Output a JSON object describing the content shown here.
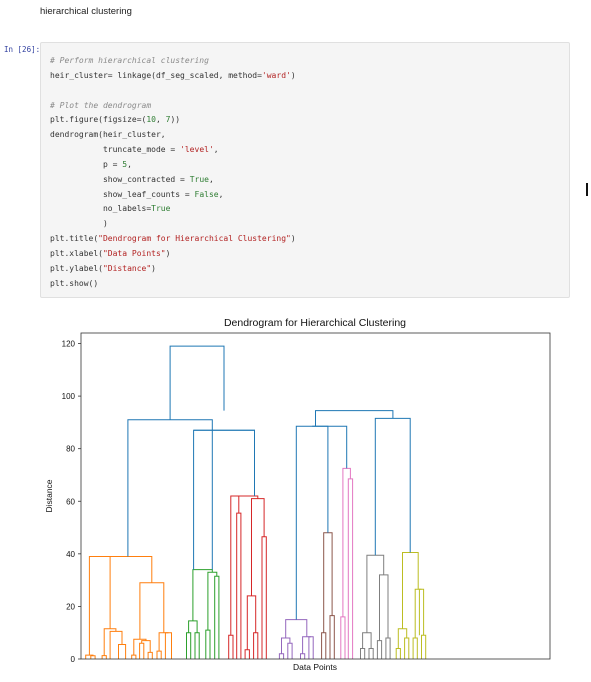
{
  "markdown": {
    "text": "hierarchical clustering"
  },
  "code_cell": {
    "prompt": "In [26]:",
    "lines": [
      {
        "tokens": [
          {
            "t": "# Perform hierarchical clustering",
            "c": "cmt"
          }
        ]
      },
      {
        "tokens": [
          {
            "t": "heir_cluster= linkage(df_seg_scaled, method="
          },
          {
            "t": "'ward'",
            "c": "str"
          },
          {
            "t": ")"
          }
        ]
      },
      {
        "tokens": [
          {
            "t": ""
          }
        ]
      },
      {
        "tokens": [
          {
            "t": "# Plot the dendrogram",
            "c": "cmt"
          }
        ]
      },
      {
        "tokens": [
          {
            "t": "plt.figure(figsize=("
          },
          {
            "t": "10",
            "c": "num"
          },
          {
            "t": ", "
          },
          {
            "t": "7",
            "c": "num"
          },
          {
            "t": "))"
          }
        ]
      },
      {
        "tokens": [
          {
            "t": "dendrogram(heir_cluster,"
          }
        ]
      },
      {
        "tokens": [
          {
            "t": "           truncate_mode = "
          },
          {
            "t": "'level'",
            "c": "str"
          },
          {
            "t": ","
          }
        ]
      },
      {
        "tokens": [
          {
            "t": "           p = "
          },
          {
            "t": "5",
            "c": "num"
          },
          {
            "t": ","
          }
        ]
      },
      {
        "tokens": [
          {
            "t": "           show_contracted = "
          },
          {
            "t": "True",
            "c": "kw"
          },
          {
            "t": ","
          }
        ]
      },
      {
        "tokens": [
          {
            "t": "           show_leaf_counts = "
          },
          {
            "t": "False",
            "c": "kw"
          },
          {
            "t": ","
          }
        ]
      },
      {
        "tokens": [
          {
            "t": "           no_labels="
          },
          {
            "t": "True",
            "c": "kw"
          }
        ]
      },
      {
        "tokens": [
          {
            "t": "           )"
          }
        ]
      },
      {
        "tokens": [
          {
            "t": "plt.title("
          },
          {
            "t": "\"Dendrogram for Hierarchical Clustering\"",
            "c": "str"
          },
          {
            "t": ")"
          }
        ]
      },
      {
        "tokens": [
          {
            "t": "plt.xlabel("
          },
          {
            "t": "\"Data Points\"",
            "c": "str"
          },
          {
            "t": ")"
          }
        ]
      },
      {
        "tokens": [
          {
            "t": "plt.ylabel("
          },
          {
            "t": "\"Distance\"",
            "c": "str"
          },
          {
            "t": ")"
          }
        ]
      },
      {
        "tokens": [
          {
            "t": "plt.show()"
          }
        ]
      }
    ]
  },
  "chart_data": {
    "type": "dendrogram",
    "title": "Dendrogram for Hierarchical Clustering",
    "xlabel": "Data Points",
    "ylabel": "Distance",
    "ylim": [
      0,
      124
    ],
    "xlim": [
      0,
      100
    ],
    "yticks": [
      0,
      20,
      40,
      60,
      80,
      100,
      120
    ],
    "grid": false,
    "colors": {
      "top": "#1f77b4",
      "orange": "#ff7f0e",
      "green": "#2ca02c",
      "red": "#d62728",
      "purple": "#9467bd",
      "brown": "#8c564b",
      "pink": "#e377c2",
      "gray": "#7f7f7f",
      "olive": "#bcbd22"
    },
    "links": [
      {
        "x": [
          2.1,
          2.1,
          3.0,
          3.0
        ],
        "y": [
          0,
          1.2,
          1.2,
          0
        ],
        "color": "orange"
      },
      {
        "x": [
          1.0,
          1.0,
          2.55,
          2.55
        ],
        "y": [
          0,
          1.5,
          1.5,
          1.2
        ],
        "color": "orange"
      },
      {
        "x": [
          4.5,
          4.5,
          5.4,
          5.4
        ],
        "y": [
          0,
          1.3,
          1.3,
          0
        ],
        "color": "orange"
      },
      {
        "x": [
          8.0,
          8.0,
          9.5,
          9.5
        ],
        "y": [
          0,
          5.5,
          5.5,
          0
        ],
        "color": "orange"
      },
      {
        "x": [
          6.2,
          6.2,
          8.75,
          8.75
        ],
        "y": [
          0,
          10.5,
          10.5,
          5.5
        ],
        "color": "orange"
      },
      {
        "x": [
          4.95,
          4.95,
          7.45,
          7.45
        ],
        "y": [
          1.3,
          11.5,
          11.5,
          10.5
        ],
        "color": "orange"
      },
      {
        "x": [
          1.8,
          1.8,
          6.2,
          6.2
        ],
        "y": [
          1.5,
          39.0,
          39.0,
          11.5
        ],
        "color": "orange"
      },
      {
        "x": [
          10.8,
          10.8,
          11.7,
          11.7
        ],
        "y": [
          0,
          1.5,
          1.5,
          0
        ],
        "color": "orange"
      },
      {
        "x": [
          12.5,
          12.5,
          13.4,
          13.4
        ],
        "y": [
          0,
          6.0,
          6.0,
          0
        ],
        "color": "orange"
      },
      {
        "x": [
          14.3,
          14.3,
          15.2,
          15.2
        ],
        "y": [
          0,
          2.5,
          2.5,
          0
        ],
        "color": "orange"
      },
      {
        "x": [
          12.95,
          12.95,
          14.75,
          14.75
        ],
        "y": [
          6.0,
          7.0,
          7.0,
          2.5
        ],
        "color": "orange"
      },
      {
        "x": [
          11.25,
          11.25,
          13.85,
          13.85
        ],
        "y": [
          1.5,
          7.5,
          7.5,
          7.0
        ],
        "color": "orange"
      },
      {
        "x": [
          16.2,
          16.2,
          17.1,
          17.1
        ],
        "y": [
          0,
          3.0,
          3.0,
          0
        ],
        "color": "orange"
      },
      {
        "x": [
          18.0,
          18.0,
          19.3,
          19.3
        ],
        "y": [
          0,
          10.0,
          10.0,
          0
        ],
        "color": "orange"
      },
      {
        "x": [
          16.65,
          16.65,
          18.65,
          18.65
        ],
        "y": [
          3.0,
          10.0,
          10.0,
          10.0
        ],
        "color": "orange"
      },
      {
        "x": [
          12.55,
          12.55,
          17.65,
          17.65
        ],
        "y": [
          7.5,
          29.0,
          29.0,
          10.0
        ],
        "color": "orange"
      },
      {
        "x": [
          4.0,
          4.0,
          15.1,
          15.1
        ],
        "y": [
          39.0,
          39.0,
          39.0,
          29.0
        ],
        "color": "orange"
      },
      {
        "x": [
          22.5,
          22.5,
          23.4,
          23.4
        ],
        "y": [
          0,
          10.0,
          10.0,
          0
        ],
        "color": "green"
      },
      {
        "x": [
          24.3,
          24.3,
          25.2,
          25.2
        ],
        "y": [
          0,
          10.0,
          10.0,
          0
        ],
        "color": "green"
      },
      {
        "x": [
          22.95,
          22.95,
          24.75,
          24.75
        ],
        "y": [
          10.0,
          14.5,
          14.5,
          10.0
        ],
        "color": "green"
      },
      {
        "x": [
          26.6,
          26.6,
          27.5,
          27.5
        ],
        "y": [
          0,
          11.0,
          11.0,
          0
        ],
        "color": "green"
      },
      {
        "x": [
          28.5,
          28.5,
          29.4,
          29.4
        ],
        "y": [
          0,
          31.5,
          31.5,
          0
        ],
        "color": "green"
      },
      {
        "x": [
          27.05,
          27.05,
          28.95,
          28.95
        ],
        "y": [
          11.0,
          33.0,
          33.0,
          31.5
        ],
        "color": "green"
      },
      {
        "x": [
          23.85,
          23.85,
          28.0,
          28.0
        ],
        "y": [
          14.5,
          34.0,
          34.0,
          33.0
        ],
        "color": "green"
      },
      {
        "x": [
          31.5,
          31.5,
          32.4,
          32.4
        ],
        "y": [
          0,
          9.0,
          9.0,
          0
        ],
        "color": "red"
      },
      {
        "x": [
          33.2,
          33.2,
          34.1,
          34.1
        ],
        "y": [
          0,
          55.5,
          55.5,
          0
        ],
        "color": "red"
      },
      {
        "x": [
          35.0,
          35.0,
          35.9,
          35.9
        ],
        "y": [
          0,
          3.5,
          3.5,
          0
        ],
        "color": "red"
      },
      {
        "x": [
          36.8,
          36.8,
          37.7,
          37.7
        ],
        "y": [
          0,
          10.0,
          10.0,
          0
        ],
        "color": "red"
      },
      {
        "x": [
          35.45,
          35.45,
          37.25,
          37.25
        ],
        "y": [
          3.5,
          24.0,
          24.0,
          10.0
        ],
        "color": "red"
      },
      {
        "x": [
          38.6,
          38.6,
          39.5,
          39.5
        ],
        "y": [
          0,
          46.5,
          46.5,
          0
        ],
        "color": "red"
      },
      {
        "x": [
          36.35,
          36.35,
          39.05,
          39.05
        ],
        "y": [
          24.0,
          61.0,
          61.0,
          46.5
        ],
        "color": "red"
      },
      {
        "x": [
          33.65,
          33.65,
          37.7,
          37.7
        ],
        "y": [
          55.5,
          62.0,
          62.0,
          61.0
        ],
        "color": "red"
      },
      {
        "x": [
          31.95,
          31.95,
          35.7,
          35.7
        ],
        "y": [
          9.0,
          62.0,
          62.0,
          62.0
        ],
        "color": "red"
      },
      {
        "x": [
          42.3,
          42.3,
          43.2,
          43.2
        ],
        "y": [
          0,
          2.0,
          2.0,
          0
        ],
        "color": "purple"
      },
      {
        "x": [
          44.1,
          44.1,
          45.0,
          45.0
        ],
        "y": [
          0,
          6.0,
          6.0,
          0
        ],
        "color": "purple"
      },
      {
        "x": [
          42.75,
          42.75,
          44.55,
          44.55
        ],
        "y": [
          2.0,
          8.0,
          8.0,
          6.0
        ],
        "color": "purple"
      },
      {
        "x": [
          46.8,
          46.8,
          47.7,
          47.7
        ],
        "y": [
          0,
          2.0,
          2.0,
          0
        ],
        "color": "purple"
      },
      {
        "x": [
          48.6,
          48.6,
          49.5,
          49.5
        ],
        "y": [
          0,
          8.5,
          8.5,
          0
        ],
        "color": "purple"
      },
      {
        "x": [
          47.25,
          47.25,
          49.05,
          49.05
        ],
        "y": [
          2.0,
          8.5,
          8.5,
          8.5
        ],
        "color": "purple"
      },
      {
        "x": [
          43.65,
          43.65,
          48.15,
          48.15
        ],
        "y": [
          8.0,
          15.0,
          15.0,
          8.5
        ],
        "color": "purple"
      },
      {
        "x": [
          51.3,
          51.3,
          52.2,
          52.2
        ],
        "y": [
          0,
          10.0,
          10.0,
          0
        ],
        "color": "brown"
      },
      {
        "x": [
          53.1,
          53.1,
          54.0,
          54.0
        ],
        "y": [
          0,
          16.5,
          16.5,
          0
        ],
        "color": "brown"
      },
      {
        "x": [
          51.75,
          51.75,
          53.55,
          53.55
        ],
        "y": [
          10.0,
          48.0,
          48.0,
          16.5
        ],
        "color": "brown"
      },
      {
        "x": [
          55.4,
          55.4,
          56.3,
          56.3
        ],
        "y": [
          0,
          16.0,
          16.0,
          0
        ],
        "color": "pink"
      },
      {
        "x": [
          57.0,
          57.0,
          57.9,
          57.9
        ],
        "y": [
          0,
          68.5,
          68.5,
          0
        ],
        "color": "pink"
      },
      {
        "x": [
          55.85,
          55.85,
          57.45,
          57.45
        ],
        "y": [
          16.0,
          72.5,
          72.5,
          68.5
        ],
        "color": "pink"
      },
      {
        "x": [
          59.6,
          59.6,
          60.5,
          60.5
        ],
        "y": [
          0,
          4.0,
          4.0,
          0
        ],
        "color": "gray"
      },
      {
        "x": [
          61.4,
          61.4,
          62.3,
          62.3
        ],
        "y": [
          0,
          4.0,
          4.0,
          0
        ],
        "color": "gray"
      },
      {
        "x": [
          60.05,
          60.05,
          61.85,
          61.85
        ],
        "y": [
          4.0,
          10.0,
          10.0,
          4.0
        ],
        "color": "gray"
      },
      {
        "x": [
          63.2,
          63.2,
          64.1,
          64.1
        ],
        "y": [
          0,
          7.0,
          7.0,
          0
        ],
        "color": "gray"
      },
      {
        "x": [
          65.0,
          65.0,
          65.9,
          65.9
        ],
        "y": [
          0,
          8.0,
          8.0,
          0
        ],
        "color": "gray"
      },
      {
        "x": [
          63.65,
          63.65,
          65.45,
          65.45
        ],
        "y": [
          7.0,
          32.0,
          32.0,
          8.0
        ],
        "color": "gray"
      },
      {
        "x": [
          60.95,
          60.95,
          64.55,
          64.55
        ],
        "y": [
          10.0,
          39.5,
          39.5,
          32.0
        ],
        "color": "gray"
      },
      {
        "x": [
          67.2,
          67.2,
          68.1,
          68.1
        ],
        "y": [
          0,
          4.0,
          4.0,
          0
        ],
        "color": "olive"
      },
      {
        "x": [
          69.0,
          69.0,
          69.9,
          69.9
        ],
        "y": [
          0,
          8.0,
          8.0,
          0
        ],
        "color": "olive"
      },
      {
        "x": [
          67.65,
          67.65,
          69.45,
          69.45
        ],
        "y": [
          4.0,
          11.5,
          11.5,
          8.0
        ],
        "color": "olive"
      },
      {
        "x": [
          70.8,
          70.8,
          71.7,
          71.7
        ],
        "y": [
          0,
          8.0,
          8.0,
          0
        ],
        "color": "olive"
      },
      {
        "x": [
          72.6,
          72.6,
          73.5,
          73.5
        ],
        "y": [
          0,
          9.0,
          9.0,
          0
        ],
        "color": "olive"
      },
      {
        "x": [
          72.15,
          72.15,
          73.05,
          73.05
        ],
        "y": [
          9.0,
          26.5,
          26.5,
          9.0
        ],
        "color": "olive"
      },
      {
        "x": [
          71.25,
          71.25,
          72.6,
          72.6
        ],
        "y": [
          8.0,
          26.5,
          26.5,
          26.5
        ],
        "color": "olive"
      },
      {
        "x": [
          68.55,
          68.55,
          71.9,
          71.9
        ],
        "y": [
          11.5,
          40.5,
          40.5,
          26.5
        ],
        "color": "olive"
      },
      {
        "x": [
          10.0,
          10.0,
          28.0,
          28.0
        ],
        "y": [
          39.0,
          91.0,
          91.0,
          34.0
        ],
        "color": "top"
      },
      {
        "x": [
          24.0,
          24.0,
          37.0,
          37.0
        ],
        "y": [
          87.0,
          87.0,
          87.0,
          62.0
        ],
        "color": "top"
      },
      {
        "x": [
          37.0,
          37.0,
          37.0,
          37.0
        ],
        "y": [
          62.0,
          87.0,
          87.0,
          62.0
        ],
        "color": "top"
      },
      {
        "x": [
          24.0,
          24.0,
          37.0,
          37.0
        ],
        "y": [
          34.0,
          87.0,
          87.0,
          62.0
        ],
        "color": "top"
      },
      {
        "x": [
          19.0,
          19.0,
          30.5,
          30.5
        ],
        "y": [
          91.0,
          119.0,
          119.0,
          94.5
        ],
        "color": "top"
      },
      {
        "x": [
          45.9,
          45.9,
          52.65,
          52.65
        ],
        "y": [
          15.0,
          88.5,
          88.5,
          48.0
        ],
        "color": "top"
      },
      {
        "x": [
          49.3,
          49.3,
          56.65,
          56.65
        ],
        "y": [
          88.5,
          88.5,
          88.5,
          72.5
        ],
        "color": "top"
      },
      {
        "x": [
          62.75,
          62.75,
          70.2,
          70.2
        ],
        "y": [
          39.5,
          91.5,
          91.5,
          40.5
        ],
        "color": "top"
      },
      {
        "x": [
          50.0,
          50.0,
          66.5,
          66.5
        ],
        "y": [
          88.5,
          94.5,
          94.5,
          91.5
        ],
        "color": "top"
      }
    ]
  }
}
